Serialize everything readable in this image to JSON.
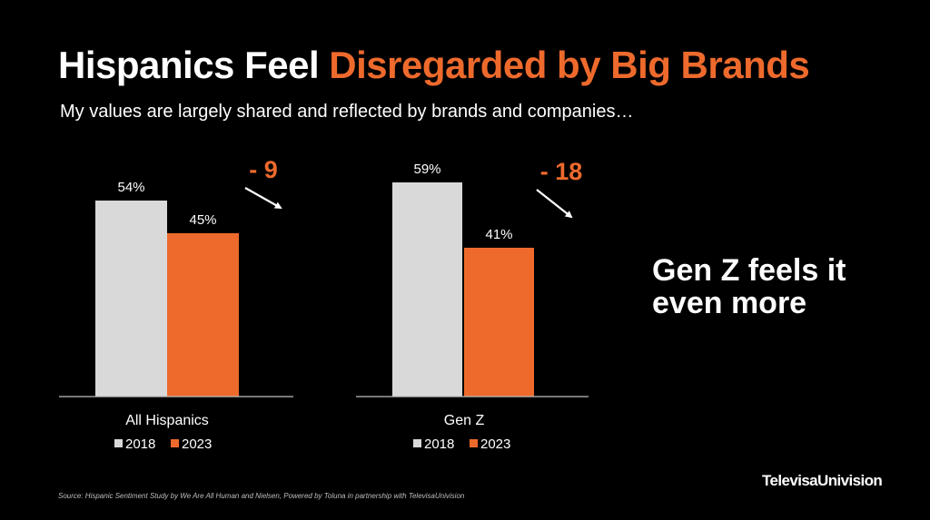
{
  "title": {
    "part1": "Hispanics Feel ",
    "part2": "Disregarded by Big Brands"
  },
  "subtitle": "My values are largely shared and reflected by brands and companies…",
  "callout": {
    "line1": "Gen Z feels it",
    "line2": "even more"
  },
  "source": "Source: Hispanic Sentiment Study by We Are All Human and Nielsen, Powered by Toluna in partnership with TelevisaUnivision",
  "logo": "TelevisaUnivision",
  "colors": {
    "bar2018": "#d9d9d9",
    "bar2023": "#ee6a2c",
    "background": "#000000",
    "text": "#ffffff"
  },
  "chart_data": [
    {
      "type": "bar",
      "category": "All Hispanics",
      "series": [
        {
          "name": "2018",
          "value": 54,
          "label": "54%"
        },
        {
          "name": "2023",
          "value": 45,
          "label": "45%"
        }
      ],
      "change_label": "- 9",
      "legend": [
        "2018",
        "2023"
      ]
    },
    {
      "type": "bar",
      "category": "Gen Z",
      "series": [
        {
          "name": "2018",
          "value": 59,
          "label": "59%"
        },
        {
          "name": "2023",
          "value": 41,
          "label": "41%"
        }
      ],
      "change_label": "- 18",
      "legend": [
        "2018",
        "2023"
      ]
    }
  ]
}
